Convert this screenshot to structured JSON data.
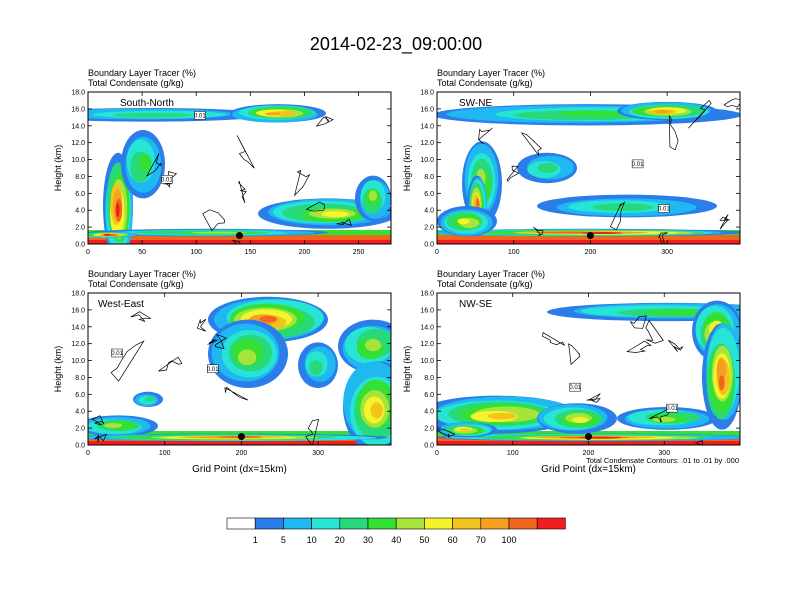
{
  "title": "2014-02-23_09:00:00",
  "colors": {
    "palette": [
      "#ffffff",
      "#2b7de9",
      "#1fb8f0",
      "#27e4d4",
      "#28d97a",
      "#33e033",
      "#a6e43c",
      "#f4f42c",
      "#f2c31c",
      "#f5a01e",
      "#f1661c",
      "#f21d1c"
    ],
    "contour": "#000000",
    "marker": "#000000"
  },
  "colorbar": {
    "labels": [
      "1",
      "5",
      "10",
      "20",
      "30",
      "40",
      "50",
      "60",
      "70",
      "100"
    ]
  },
  "contour_note": "Total Condensate Contours: .01 to .01 by .000",
  "contour_label": "0.01",
  "chart_data": [
    {
      "type": "heatmap",
      "name": "South-North",
      "subtitle_line1": "Boundary Layer Tracer    (%)",
      "subtitle_line2": "Total Condensate    (g/kg)",
      "ylabel": "Height (km)",
      "xlabel": "",
      "xlim": [
        0,
        280
      ],
      "ylim": [
        0,
        18
      ],
      "xticks": [
        0,
        50,
        100,
        150,
        200,
        250
      ],
      "yticks": [
        "0.0",
        "2.0",
        "4.0",
        "6.0",
        "8.0",
        "10.0",
        "12.0",
        "14.0",
        "16.0",
        "18.0"
      ],
      "marker": {
        "x": 140,
        "y": 1.0
      }
    },
    {
      "type": "heatmap",
      "name": "SW-NE",
      "subtitle_line1": "Boundary Layer Tracer    (%)",
      "subtitle_line2": "Total Condensate    (g/kg)",
      "ylabel": "Height (km)",
      "xlabel": "",
      "xlim": [
        0,
        395
      ],
      "ylim": [
        0,
        18
      ],
      "xticks": [
        0,
        100,
        200,
        300
      ],
      "yticks": [
        "0.0",
        "2.0",
        "4.0",
        "6.0",
        "8.0",
        "10.0",
        "12.0",
        "14.0",
        "16.0",
        "18.0"
      ],
      "marker": {
        "x": 200,
        "y": 1.0
      }
    },
    {
      "type": "heatmap",
      "name": "West-East",
      "subtitle_line1": "Boundary Layer Tracer    (%)",
      "subtitle_line2": "Total Condensate    (g/kg)",
      "ylabel": "Height (km)",
      "xlabel": "Grid Point (dx=15km)",
      "xlim": [
        0,
        395
      ],
      "ylim": [
        0,
        18
      ],
      "xticks": [
        0,
        100,
        200,
        300
      ],
      "yticks": [
        "0.0",
        "2.0",
        "4.0",
        "6.0",
        "8.0",
        "10.0",
        "12.0",
        "14.0",
        "16.0",
        "18.0"
      ],
      "marker": {
        "x": 200,
        "y": 1.0
      }
    },
    {
      "type": "heatmap",
      "name": "NW-SE",
      "subtitle_line1": "Boundary Layer Tracer    (%)",
      "subtitle_line2": "Total Condensate    (g/kg)",
      "ylabel": "Height (km)",
      "xlabel": "Grid Point (dx=15km)",
      "xlim": [
        0,
        400
      ],
      "ylim": [
        0,
        18
      ],
      "xticks": [
        0,
        100,
        200,
        300
      ],
      "yticks": [
        "0.0",
        "2.0",
        "4.0",
        "6.0",
        "8.0",
        "10.0",
        "12.0",
        "14.0",
        "16.0",
        "18.0"
      ],
      "marker": {
        "x": 200,
        "y": 1.0
      }
    }
  ]
}
